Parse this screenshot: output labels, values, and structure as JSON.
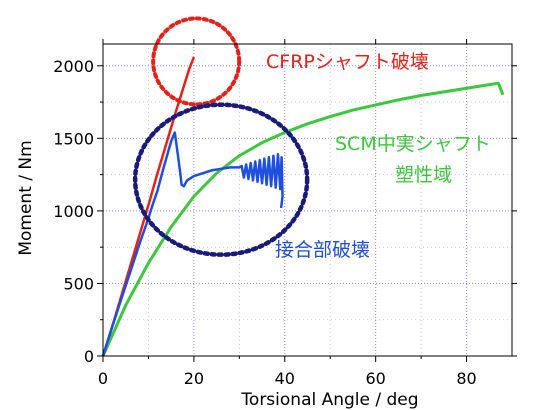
{
  "chart_data": {
    "type": "line",
    "xlabel": "Torsional Angle / deg",
    "ylabel": "Moment / Nm",
    "xlim": [
      0,
      90
    ],
    "ylim": [
      0,
      2150
    ],
    "xticks": [
      "0",
      "20",
      "40",
      "60",
      "80"
    ],
    "yticks": [
      "0",
      "500",
      "1000",
      "1500",
      "2000"
    ],
    "grid": true,
    "grid_style": "dotted",
    "colors": {
      "cfrp": "#e8201a",
      "joint": "#1f4fe0",
      "scm": "#3cc83c",
      "circle_red": "#e8201a",
      "circle_navy": "#1a1a7a",
      "grid": "#8a8ad8"
    },
    "series": [
      {
        "key": "cfrp",
        "points": [
          [
            0,
            0
          ],
          [
            2,
            200
          ],
          [
            4,
            410
          ],
          [
            6,
            620
          ],
          [
            8,
            830
          ],
          [
            10,
            1040
          ],
          [
            12,
            1260
          ],
          [
            14,
            1470
          ],
          [
            16,
            1680
          ],
          [
            18,
            1880
          ],
          [
            19,
            1980
          ],
          [
            20,
            2060
          ]
        ]
      },
      {
        "key": "joint",
        "points": [
          [
            0,
            0
          ],
          [
            2,
            200
          ],
          [
            4,
            390
          ],
          [
            6,
            580
          ],
          [
            8,
            770
          ],
          [
            10,
            950
          ],
          [
            11,
            1050
          ],
          [
            12,
            1140
          ],
          [
            13,
            1260
          ],
          [
            14,
            1370
          ],
          [
            15,
            1480
          ],
          [
            15.8,
            1540
          ],
          [
            16.5,
            1380
          ],
          [
            17,
            1260
          ],
          [
            17.3,
            1180
          ],
          [
            17.8,
            1170
          ],
          [
            18.5,
            1210
          ],
          [
            20,
            1240
          ],
          [
            22,
            1260
          ],
          [
            24,
            1280
          ],
          [
            26,
            1290
          ],
          [
            28,
            1300
          ],
          [
            30,
            1300
          ],
          [
            30.5,
            1310
          ],
          [
            31,
            1230
          ],
          [
            31.5,
            1320
          ],
          [
            32,
            1220
          ],
          [
            32.5,
            1330
          ],
          [
            33,
            1210
          ],
          [
            33.5,
            1340
          ],
          [
            34,
            1200
          ],
          [
            34.5,
            1350
          ],
          [
            35,
            1190
          ],
          [
            35.5,
            1360
          ],
          [
            36,
            1180
          ],
          [
            36.5,
            1370
          ],
          [
            37,
            1170
          ],
          [
            37.5,
            1380
          ],
          [
            38,
            1160
          ],
          [
            38.5,
            1390
          ],
          [
            39,
            1150
          ],
          [
            39.3,
            1370
          ],
          [
            39.5,
            1100
          ],
          [
            39.2,
            1020
          ]
        ]
      },
      {
        "key": "scm",
        "points": [
          [
            0,
            0
          ],
          [
            5,
            350
          ],
          [
            10,
            640
          ],
          [
            15,
            890
          ],
          [
            20,
            1100
          ],
          [
            25,
            1260
          ],
          [
            30,
            1380
          ],
          [
            35,
            1470
          ],
          [
            40,
            1540
          ],
          [
            45,
            1600
          ],
          [
            50,
            1650
          ],
          [
            55,
            1695
          ],
          [
            60,
            1730
          ],
          [
            65,
            1765
          ],
          [
            70,
            1795
          ],
          [
            75,
            1820
          ],
          [
            80,
            1845
          ],
          [
            85,
            1870
          ],
          [
            87,
            1880
          ],
          [
            88,
            1800
          ]
        ]
      }
    ],
    "annotations": [
      {
        "key": "cfrp_label",
        "text": "CFRPシャフト破壊",
        "color": "#e8201a"
      },
      {
        "key": "scm_label_1",
        "text": "SCM中実シャフト",
        "color": "#3cc83c"
      },
      {
        "key": "scm_label_2",
        "text": "塑性域",
        "color": "#3cc83c"
      },
      {
        "key": "joint_label",
        "text": "接合部破壊",
        "color": "#1f4fe0"
      }
    ],
    "highlight_circles": [
      {
        "key": "cfrp_failure",
        "color": "red",
        "center_data": [
          20.5,
          2030
        ]
      },
      {
        "key": "joint_failure",
        "color": "navy",
        "center_data": [
          26,
          1215
        ]
      }
    ]
  }
}
